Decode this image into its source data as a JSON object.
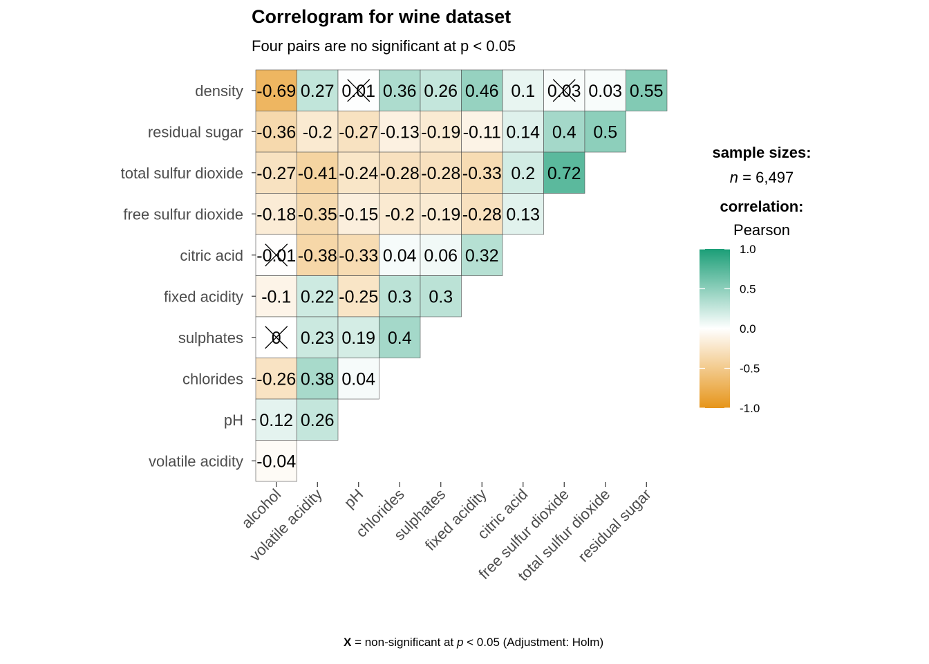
{
  "title": "Correlogram for wine dataset",
  "subtitle": "Four pairs are no significant at p < 0.05",
  "legend": {
    "sample_heading": "sample sizes:",
    "n_symbol": "n",
    "n_value": " = 6,497",
    "corr_heading": "correlation:",
    "corr_method": "Pearson",
    "ticks": [
      "1.0",
      "0.5",
      "0.0",
      "-0.5",
      "-1.0"
    ],
    "colors": {
      "high": "#1B9E77",
      "mid": "#FFFFFF",
      "low": "#E6951A"
    }
  },
  "caption": {
    "x_mark": "X",
    "text_a": " = non-significant at ",
    "p_symbol": "p",
    "text_b": " < 0.05 (Adjustment: Holm)"
  },
  "chart_data": {
    "type": "heatmap",
    "x_labels": [
      "alcohol",
      "volatile acidity",
      "pH",
      "chlorides",
      "sulphates",
      "fixed acidity",
      "citric acid",
      "free sulfur dioxide",
      "total sulfur dioxide",
      "residual sugar"
    ],
    "y_labels": [
      "density",
      "residual sugar",
      "total sulfur dioxide",
      "free sulfur dioxide",
      "citric acid",
      "fixed acidity",
      "sulphates",
      "chlorides",
      "pH",
      "volatile acidity"
    ],
    "color_range": [
      -1,
      1
    ],
    "rows": [
      [
        {
          "v": -0.69,
          "l": "-0.69"
        },
        {
          "v": 0.27,
          "l": "0.27"
        },
        {
          "v": 0.01,
          "l": "0.01",
          "ns": true
        },
        {
          "v": 0.36,
          "l": "0.36"
        },
        {
          "v": 0.26,
          "l": "0.26"
        },
        {
          "v": 0.46,
          "l": "0.46"
        },
        {
          "v": 0.1,
          "l": "0.1"
        },
        {
          "v": 0.03,
          "l": "0.03",
          "ns": true
        },
        {
          "v": 0.03,
          "l": "0.03"
        },
        {
          "v": 0.55,
          "l": "0.55"
        }
      ],
      [
        {
          "v": -0.36,
          "l": "-0.36"
        },
        {
          "v": -0.2,
          "l": "-0.2"
        },
        {
          "v": -0.27,
          "l": "-0.27"
        },
        {
          "v": -0.13,
          "l": "-0.13"
        },
        {
          "v": -0.19,
          "l": "-0.19"
        },
        {
          "v": -0.11,
          "l": "-0.11"
        },
        {
          "v": 0.14,
          "l": "0.14"
        },
        {
          "v": 0.4,
          "l": "0.4"
        },
        {
          "v": 0.5,
          "l": "0.5"
        }
      ],
      [
        {
          "v": -0.27,
          "l": "-0.27"
        },
        {
          "v": -0.41,
          "l": "-0.41"
        },
        {
          "v": -0.24,
          "l": "-0.24"
        },
        {
          "v": -0.28,
          "l": "-0.28"
        },
        {
          "v": -0.28,
          "l": "-0.28"
        },
        {
          "v": -0.33,
          "l": "-0.33"
        },
        {
          "v": 0.2,
          "l": "0.2"
        },
        {
          "v": 0.72,
          "l": "0.72"
        }
      ],
      [
        {
          "v": -0.18,
          "l": "-0.18"
        },
        {
          "v": -0.35,
          "l": "-0.35"
        },
        {
          "v": -0.15,
          "l": "-0.15"
        },
        {
          "v": -0.2,
          "l": "-0.2"
        },
        {
          "v": -0.19,
          "l": "-0.19"
        },
        {
          "v": -0.28,
          "l": "-0.28"
        },
        {
          "v": 0.13,
          "l": "0.13"
        }
      ],
      [
        {
          "v": -0.01,
          "l": "-0.01",
          "ns": true
        },
        {
          "v": -0.38,
          "l": "-0.38"
        },
        {
          "v": -0.33,
          "l": "-0.33"
        },
        {
          "v": 0.04,
          "l": "0.04"
        },
        {
          "v": 0.06,
          "l": "0.06"
        },
        {
          "v": 0.32,
          "l": "0.32"
        }
      ],
      [
        {
          "v": -0.1,
          "l": "-0.1"
        },
        {
          "v": 0.22,
          "l": "0.22"
        },
        {
          "v": -0.25,
          "l": "-0.25"
        },
        {
          "v": 0.3,
          "l": "0.3"
        },
        {
          "v": 0.3,
          "l": "0.3"
        }
      ],
      [
        {
          "v": 0.0,
          "l": "0",
          "ns": true
        },
        {
          "v": 0.23,
          "l": "0.23"
        },
        {
          "v": 0.19,
          "l": "0.19"
        },
        {
          "v": 0.4,
          "l": "0.4"
        }
      ],
      [
        {
          "v": -0.26,
          "l": "-0.26"
        },
        {
          "v": 0.38,
          "l": "0.38"
        },
        {
          "v": 0.04,
          "l": "0.04"
        }
      ],
      [
        {
          "v": 0.12,
          "l": "0.12"
        },
        {
          "v": 0.26,
          "l": "0.26"
        }
      ],
      [
        {
          "v": -0.04,
          "l": "-0.04"
        }
      ]
    ]
  }
}
